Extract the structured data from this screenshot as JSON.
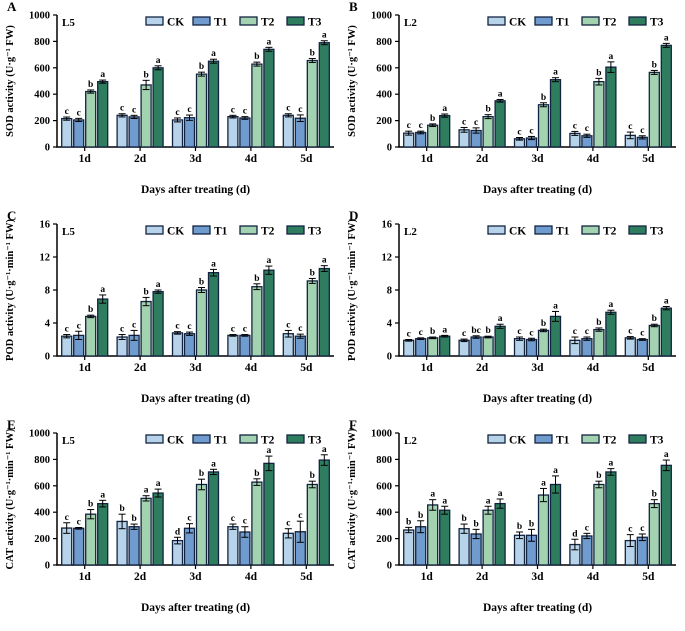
{
  "figure": {
    "x_axis_title": "Days after treating (d)",
    "categories": [
      "1d",
      "2d",
      "3d",
      "4d",
      "5d"
    ],
    "legend": [
      "CK",
      "T1",
      "T2",
      "T3"
    ],
    "colors": {
      "CK": "#b6d3ea",
      "T1": "#6f9bce",
      "T2": "#a2d2b0",
      "T3": "#2e7d5f",
      "outline": "#132440",
      "axis": "#000000"
    }
  },
  "chart_data": [
    {
      "type": "bar",
      "panel_label": "A",
      "inner_label": "L5",
      "ylabel": "SOD activity (U·g⁻¹ FW)",
      "xlabel": "Days after treating (d)",
      "ylim": [
        0,
        1000
      ],
      "yticks": [
        0,
        200,
        400,
        600,
        800,
        1000
      ],
      "categories": [
        "1d",
        "2d",
        "3d",
        "4d",
        "5d"
      ],
      "series": [
        {
          "name": "CK",
          "values": [
            215,
            240,
            205,
            230,
            240
          ],
          "errors": [
            12,
            12,
            15,
            10,
            12
          ],
          "letters": [
            "c",
            "c",
            "c",
            "c",
            "c"
          ]
        },
        {
          "name": "T1",
          "values": [
            205,
            228,
            222,
            220,
            218
          ],
          "errors": [
            12,
            12,
            20,
            10,
            25
          ],
          "letters": [
            "c",
            "c",
            "c",
            "c",
            "c"
          ]
        },
        {
          "name": "T2",
          "values": [
            420,
            470,
            552,
            628,
            655
          ],
          "errors": [
            12,
            35,
            15,
            15,
            15
          ],
          "letters": [
            "b",
            "b",
            "b",
            "b",
            "b"
          ]
        },
        {
          "name": "T3",
          "values": [
            495,
            600,
            650,
            740,
            790
          ],
          "errors": [
            12,
            15,
            15,
            15,
            15
          ],
          "letters": [
            "a",
            "a",
            "a",
            "a",
            "a"
          ]
        }
      ]
    },
    {
      "type": "bar",
      "panel_label": "B",
      "inner_label": "L2",
      "ylabel": "SOD activity (U·g⁻¹ FW)",
      "xlabel": "Days after treating (d)",
      "ylim": [
        0,
        1000
      ],
      "yticks": [
        0,
        200,
        400,
        600,
        800,
        1000
      ],
      "categories": [
        "1d",
        "2d",
        "3d",
        "4d",
        "5d"
      ],
      "series": [
        {
          "name": "CK",
          "values": [
            105,
            130,
            62,
            103,
            88
          ],
          "errors": [
            15,
            18,
            10,
            15,
            25
          ],
          "letters": [
            "c",
            "c",
            "c",
            "c",
            "c"
          ]
        },
        {
          "name": "T1",
          "values": [
            110,
            125,
            68,
            85,
            73
          ],
          "errors": [
            10,
            20,
            12,
            12,
            12
          ],
          "letters": [
            "c",
            "c",
            "c",
            "c",
            "c"
          ]
        },
        {
          "name": "T2",
          "values": [
            165,
            230,
            320,
            495,
            565
          ],
          "errors": [
            10,
            15,
            15,
            25,
            15
          ],
          "letters": [
            "b",
            "b",
            "b",
            "b",
            "b"
          ]
        },
        {
          "name": "T3",
          "values": [
            238,
            350,
            510,
            605,
            770
          ],
          "errors": [
            12,
            10,
            15,
            40,
            15
          ],
          "letters": [
            "a",
            "a",
            "a",
            "a",
            "a"
          ]
        }
      ]
    },
    {
      "type": "bar",
      "panel_label": "C",
      "inner_label": "L5",
      "ylabel": "POD activity (U·g⁻¹·min⁻¹ FW)",
      "xlabel": "Days after treating (d)",
      "ylim": [
        0,
        16
      ],
      "yticks": [
        0,
        4,
        8,
        12,
        16
      ],
      "categories": [
        "1d",
        "2d",
        "3d",
        "4d",
        "5d"
      ],
      "series": [
        {
          "name": "CK",
          "values": [
            2.4,
            2.3,
            2.8,
            2.5,
            2.7
          ],
          "errors": [
            0.2,
            0.3,
            0.15,
            0.1,
            0.4
          ],
          "letters": [
            "c",
            "c",
            "c",
            "c",
            "c"
          ]
        },
        {
          "name": "T1",
          "values": [
            2.5,
            2.5,
            2.7,
            2.5,
            2.4
          ],
          "errors": [
            0.5,
            0.6,
            0.2,
            0.1,
            0.25
          ],
          "letters": [
            "c",
            "c",
            "c",
            "c",
            "c"
          ]
        },
        {
          "name": "T2",
          "values": [
            4.8,
            6.6,
            8.0,
            8.4,
            9.1
          ],
          "errors": [
            0.15,
            0.5,
            0.3,
            0.35,
            0.3
          ],
          "letters": [
            "b",
            "b",
            "b",
            "b",
            "b"
          ]
        },
        {
          "name": "T3",
          "values": [
            6.9,
            7.8,
            10.1,
            10.4,
            10.6
          ],
          "errors": [
            0.5,
            0.2,
            0.4,
            0.5,
            0.35
          ],
          "letters": [
            "a",
            "a",
            "a",
            "a",
            "a"
          ]
        }
      ]
    },
    {
      "type": "bar",
      "panel_label": "D",
      "inner_label": "L2",
      "ylabel": "POD activity (U·g⁻¹·min⁻¹ FW)",
      "xlabel": "Days after treating (d)",
      "ylim": [
        0,
        16
      ],
      "yticks": [
        0,
        4,
        8,
        12,
        16
      ],
      "categories": [
        "1d",
        "2d",
        "3d",
        "4d",
        "5d"
      ],
      "series": [
        {
          "name": "CK",
          "values": [
            1.9,
            1.9,
            2.1,
            1.9,
            2.2
          ],
          "errors": [
            0.1,
            0.15,
            0.2,
            0.4,
            0.15
          ],
          "letters": [
            "c",
            "c",
            "c",
            "c",
            "c"
          ]
        },
        {
          "name": "T1",
          "values": [
            2.1,
            2.3,
            2.0,
            2.1,
            2.0
          ],
          "errors": [
            0.1,
            0.15,
            0.15,
            0.2,
            0.1
          ],
          "letters": [
            "c",
            "bc",
            "c",
            "c",
            "c"
          ]
        },
        {
          "name": "T2",
          "values": [
            2.2,
            2.3,
            3.1,
            3.2,
            3.7
          ],
          "errors": [
            0.1,
            0.1,
            0.15,
            0.2,
            0.15
          ],
          "letters": [
            "b",
            "b",
            "b",
            "b",
            "b"
          ]
        },
        {
          "name": "T3",
          "values": [
            2.4,
            3.6,
            4.8,
            5.3,
            5.8
          ],
          "errors": [
            0.1,
            0.25,
            0.6,
            0.25,
            0.2
          ],
          "letters": [
            "a",
            "a",
            "a",
            "a",
            "a"
          ]
        }
      ]
    },
    {
      "type": "bar",
      "panel_label": "E",
      "inner_label": "L5",
      "ylabel": "CAT activity (U·g⁻¹·min⁻¹ FW)",
      "xlabel": "Days after treating (d)",
      "ylim": [
        0,
        1000
      ],
      "yticks": [
        0,
        200,
        400,
        600,
        800,
        1000
      ],
      "categories": [
        "1d",
        "2d",
        "3d",
        "4d",
        "5d"
      ],
      "series": [
        {
          "name": "CK",
          "values": [
            280,
            330,
            185,
            290,
            240
          ],
          "errors": [
            40,
            55,
            25,
            20,
            35
          ],
          "letters": [
            "c",
            "b",
            "d",
            "c",
            "c"
          ]
        },
        {
          "name": "T1",
          "values": [
            278,
            290,
            278,
            250,
            252
          ],
          "errors": [
            6,
            20,
            35,
            40,
            80
          ],
          "letters": [
            "c",
            "b",
            "c",
            "c",
            "c"
          ]
        },
        {
          "name": "T2",
          "values": [
            385,
            505,
            610,
            628,
            610
          ],
          "errors": [
            35,
            20,
            40,
            25,
            25
          ],
          "letters": [
            "b",
            "a",
            "b",
            "b",
            "b"
          ]
        },
        {
          "name": "T3",
          "values": [
            465,
            545,
            705,
            770,
            795
          ],
          "errors": [
            25,
            30,
            20,
            55,
            40
          ],
          "letters": [
            "a",
            "a",
            "a",
            "a",
            "a"
          ]
        }
      ]
    },
    {
      "type": "bar",
      "panel_label": "F",
      "inner_label": "L2",
      "ylabel": "CAT activity (U·g⁻¹·min⁻¹ FW)",
      "xlabel": "Days after treating (d)",
      "ylim": [
        0,
        1000
      ],
      "yticks": [
        0,
        200,
        400,
        600,
        800,
        1000
      ],
      "categories": [
        "1d",
        "2d",
        "3d",
        "4d",
        "5d"
      ],
      "series": [
        {
          "name": "CK",
          "values": [
            265,
            275,
            225,
            155,
            185
          ],
          "errors": [
            20,
            35,
            25,
            40,
            45
          ],
          "letters": [
            "b",
            "b",
            "b",
            "d",
            "c"
          ]
        },
        {
          "name": "T1",
          "values": [
            290,
            235,
            225,
            220,
            210
          ],
          "errors": [
            45,
            35,
            45,
            20,
            25
          ],
          "letters": [
            "b",
            "b",
            "b",
            "c",
            "c"
          ]
        },
        {
          "name": "T2",
          "values": [
            455,
            415,
            530,
            610,
            465
          ],
          "errors": [
            40,
            30,
            50,
            25,
            30
          ],
          "letters": [
            "a",
            "a",
            "a",
            "b",
            "b"
          ]
        },
        {
          "name": "T3",
          "values": [
            415,
            465,
            610,
            705,
            755
          ],
          "errors": [
            30,
            35,
            65,
            25,
            40
          ],
          "letters": [
            "a",
            "a",
            "a",
            "a",
            "a"
          ]
        }
      ]
    }
  ]
}
